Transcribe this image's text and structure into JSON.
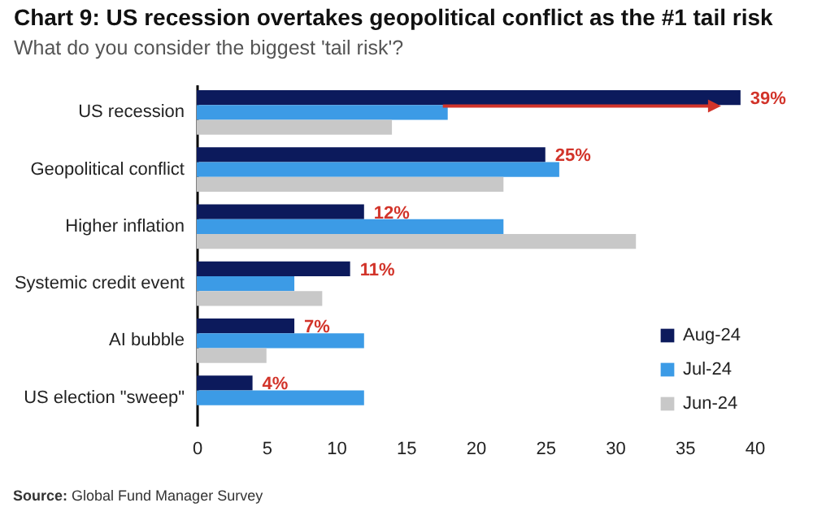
{
  "chart_data": {
    "type": "bar",
    "orientation": "horizontal",
    "title": "Chart 9: US recession overtakes geopolitical conflict as the #1 tail risk",
    "subtitle": "What do you consider the biggest 'tail risk'?",
    "categories": [
      "US recession",
      "Geopolitical conflict",
      "Higher inflation",
      "Systemic credit event",
      "AI bubble",
      "US election \"sweep\""
    ],
    "series": [
      {
        "name": "Aug-24",
        "color": "#0c1a5c",
        "values": [
          39,
          25,
          12,
          11,
          7,
          4
        ],
        "value_labels": [
          "39%",
          "25%",
          "12%",
          "11%",
          "7%",
          "4%"
        ]
      },
      {
        "name": "Jul-24",
        "color": "#3c9be6",
        "values": [
          18,
          26,
          22,
          7,
          12,
          12
        ]
      },
      {
        "name": "Jun-24",
        "color": "#c8c8c8",
        "values": [
          14,
          22,
          31.5,
          9,
          5,
          null
        ]
      }
    ],
    "xlim": [
      0,
      40
    ],
    "xticks": [
      0,
      5,
      10,
      15,
      20,
      25,
      30,
      35,
      40
    ],
    "legend": "bottom right",
    "annotations": [
      "Source: Global Fund Manager Survey"
    ]
  }
}
